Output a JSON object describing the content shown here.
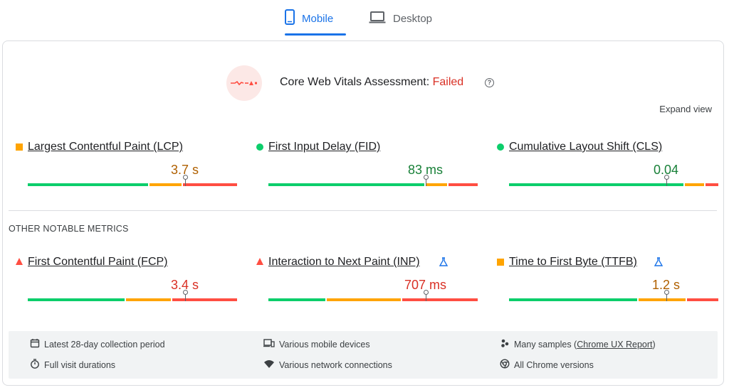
{
  "tabs": [
    {
      "label": "Mobile",
      "active": true,
      "icon": "phone-icon"
    },
    {
      "label": "Desktop",
      "active": false,
      "icon": "laptop-icon"
    }
  ],
  "assessment": {
    "title": "Core Web Vitals Assessment: ",
    "status": "Failed",
    "help_icon": "?",
    "expand_label": "Expand view"
  },
  "core_metrics": [
    {
      "label": "Largest Contentful Paint (LCP)",
      "value": "3.7 s",
      "rating": "average",
      "distribution": {
        "good": 0.58,
        "average": 0.16,
        "poor": 0.26
      },
      "marker": 0.75
    },
    {
      "label": "First Input Delay (FID)",
      "value": "83 ms",
      "rating": "good",
      "distribution": {
        "good": 0.75,
        "average": 0.11,
        "poor": 0.14
      },
      "marker": 0.75
    },
    {
      "label": "Cumulative Layout Shift (CLS)",
      "value": "0.04",
      "rating": "good",
      "distribution": {
        "good": 0.84,
        "average": 0.1,
        "poor": 0.06
      },
      "marker": 0.75
    }
  ],
  "other_heading": "OTHER NOTABLE METRICS",
  "other_metrics": [
    {
      "label": "First Contentful Paint (FCP)",
      "value": "3.4 s",
      "rating": "poor",
      "distribution": {
        "good": 0.47,
        "average": 0.22,
        "poor": 0.31
      },
      "marker": 0.75,
      "experimental": false
    },
    {
      "label": "Interaction to Next Paint (INP)",
      "value": "707 ms",
      "rating": "poor",
      "distribution": {
        "good": 0.28,
        "average": 0.36,
        "poor": 0.36
      },
      "marker": 0.75,
      "experimental": true
    },
    {
      "label": "Time to First Byte (TTFB)",
      "value": "1.2 s",
      "rating": "average",
      "distribution": {
        "good": 0.62,
        "average": 0.23,
        "poor": 0.15
      },
      "marker": 0.75,
      "experimental": true
    }
  ],
  "footer": {
    "collection_period": "Latest 28-day collection period",
    "visit_durations": "Full visit durations",
    "devices": "Various mobile devices",
    "network": "Various network connections",
    "samples_prefix": "Many samples (",
    "samples_link": "Chrome UX Report",
    "samples_suffix": ")",
    "chrome_versions": "All Chrome versions"
  },
  "colors": {
    "good": "#0cce6b",
    "average": "#ffa400",
    "poor": "#ff4e42",
    "accent": "#1a73e8",
    "fail": "#d93025"
  }
}
